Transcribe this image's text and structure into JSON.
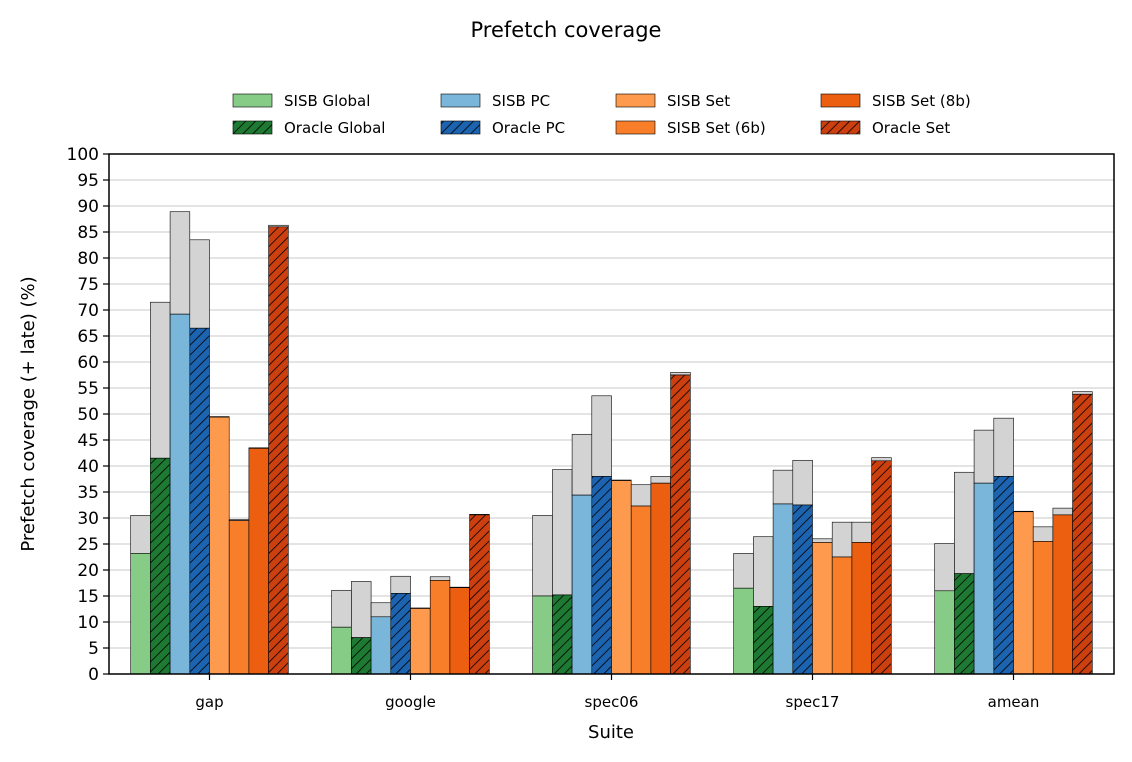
{
  "chart_data": {
    "type": "bar",
    "title": "Prefetch coverage",
    "xlabel": "Suite",
    "ylabel": "Prefetch coverage (+ late) (%)",
    "ylim": [
      0,
      100
    ],
    "yticks": [
      0,
      5,
      10,
      15,
      20,
      25,
      30,
      35,
      40,
      45,
      50,
      55,
      60,
      65,
      70,
      75,
      80,
      85,
      90,
      95,
      100
    ],
    "grid": "horizontal",
    "legend_position": "top",
    "stacked_component": "late",
    "categories": [
      "gap",
      "google",
      "spec06",
      "spec17",
      "amean"
    ],
    "series": [
      {
        "name": "SISB Global",
        "color": "#86cc86",
        "hatched": false,
        "values": [
          23.2,
          9.0,
          15.0,
          16.5,
          16.0
        ],
        "totals": [
          30.5,
          16.1,
          30.5,
          23.2,
          25.1
        ]
      },
      {
        "name": "Oracle Global",
        "color": "#1e7a32",
        "hatched": true,
        "values": [
          41.5,
          7.0,
          15.2,
          13.0,
          19.3
        ],
        "totals": [
          71.5,
          17.8,
          39.3,
          26.4,
          38.8
        ]
      },
      {
        "name": "SISB PC",
        "color": "#7ab6da",
        "hatched": false,
        "values": [
          69.2,
          11.0,
          34.4,
          32.7,
          36.7
        ],
        "totals": [
          88.9,
          13.7,
          46.1,
          39.2,
          46.9
        ]
      },
      {
        "name": "Oracle PC",
        "color": "#1c63b0",
        "hatched": true,
        "values": [
          66.5,
          15.5,
          38.0,
          32.5,
          38.0
        ],
        "totals": [
          83.5,
          18.8,
          53.5,
          41.1,
          49.2
        ]
      },
      {
        "name": "SISB Set",
        "color": "#fd9a4e",
        "hatched": false,
        "values": [
          49.4,
          12.6,
          37.2,
          25.3,
          31.2
        ],
        "totals": [
          49.5,
          12.7,
          37.3,
          26.0,
          31.3
        ]
      },
      {
        "name": "SISB Set (6b)",
        "color": "#f87e2a",
        "hatched": false,
        "values": [
          29.5,
          18.0,
          32.3,
          22.5,
          25.5
        ],
        "totals": [
          29.7,
          18.7,
          36.4,
          29.2,
          28.3
        ]
      },
      {
        "name": "SISB Set (8b)",
        "color": "#ec5f10",
        "hatched": false,
        "values": [
          43.4,
          16.6,
          36.7,
          25.3,
          30.6
        ],
        "totals": [
          43.5,
          16.7,
          38.0,
          29.2,
          31.9
        ]
      },
      {
        "name": "Oracle Set",
        "color": "#cc4010",
        "hatched": true,
        "values": [
          86.0,
          30.6,
          57.5,
          41.0,
          53.8
        ],
        "totals": [
          86.3,
          30.7,
          58.0,
          41.6,
          54.3
        ]
      }
    ],
    "late_color": "#d3d3d3"
  }
}
